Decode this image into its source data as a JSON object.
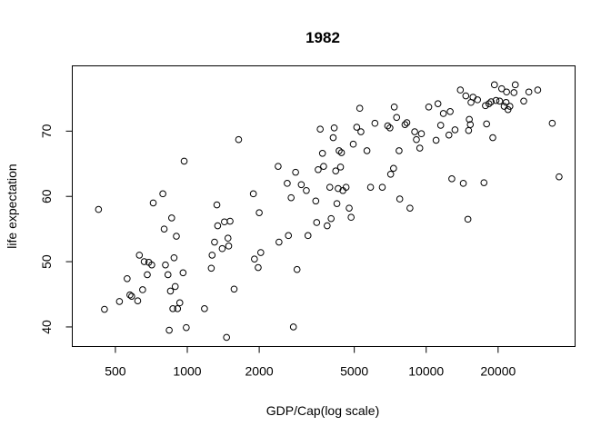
{
  "chart_data": {
    "type": "scatter",
    "title": "1982",
    "xlabel": "GDP/Cap(log scale)",
    "ylabel": "life expectation",
    "x_scale": "log",
    "xlim": [
      330,
      42000
    ],
    "ylim": [
      37,
      80
    ],
    "x_ticks": [
      500,
      1000,
      2000,
      5000,
      10000,
      20000
    ],
    "y_ticks": [
      40,
      50,
      60,
      70
    ],
    "grid": false,
    "legend": "none",
    "points": [
      {
        "x": 425,
        "y": 58.0
      },
      {
        "x": 450,
        "y": 42.7
      },
      {
        "x": 520,
        "y": 43.9
      },
      {
        "x": 560,
        "y": 47.4
      },
      {
        "x": 575,
        "y": 44.9
      },
      {
        "x": 585,
        "y": 44.7
      },
      {
        "x": 620,
        "y": 44.0
      },
      {
        "x": 630,
        "y": 51.0
      },
      {
        "x": 650,
        "y": 45.7
      },
      {
        "x": 660,
        "y": 50.0
      },
      {
        "x": 680,
        "y": 48.0
      },
      {
        "x": 690,
        "y": 49.9
      },
      {
        "x": 710,
        "y": 49.5
      },
      {
        "x": 720,
        "y": 59.0
      },
      {
        "x": 790,
        "y": 60.4
      },
      {
        "x": 800,
        "y": 55.0
      },
      {
        "x": 810,
        "y": 49.5
      },
      {
        "x": 830,
        "y": 48.0
      },
      {
        "x": 840,
        "y": 39.5
      },
      {
        "x": 850,
        "y": 45.5
      },
      {
        "x": 860,
        "y": 56.7
      },
      {
        "x": 870,
        "y": 42.8
      },
      {
        "x": 880,
        "y": 50.6
      },
      {
        "x": 890,
        "y": 46.2
      },
      {
        "x": 900,
        "y": 53.9
      },
      {
        "x": 910,
        "y": 42.8
      },
      {
        "x": 930,
        "y": 43.7
      },
      {
        "x": 960,
        "y": 48.3
      },
      {
        "x": 970,
        "y": 65.4
      },
      {
        "x": 990,
        "y": 39.9
      },
      {
        "x": 1180,
        "y": 42.8
      },
      {
        "x": 1260,
        "y": 49.0
      },
      {
        "x": 1270,
        "y": 51.0
      },
      {
        "x": 1300,
        "y": 53.0
      },
      {
        "x": 1330,
        "y": 58.7
      },
      {
        "x": 1340,
        "y": 55.5
      },
      {
        "x": 1400,
        "y": 52.0
      },
      {
        "x": 1430,
        "y": 56.1
      },
      {
        "x": 1460,
        "y": 38.4
      },
      {
        "x": 1480,
        "y": 53.6
      },
      {
        "x": 1490,
        "y": 52.4
      },
      {
        "x": 1510,
        "y": 56.2
      },
      {
        "x": 1570,
        "y": 45.8
      },
      {
        "x": 1640,
        "y": 68.7
      },
      {
        "x": 1890,
        "y": 60.4
      },
      {
        "x": 1910,
        "y": 50.4
      },
      {
        "x": 1980,
        "y": 49.1
      },
      {
        "x": 2000,
        "y": 57.5
      },
      {
        "x": 2030,
        "y": 51.4
      },
      {
        "x": 2400,
        "y": 64.6
      },
      {
        "x": 2420,
        "y": 53.0
      },
      {
        "x": 2620,
        "y": 62.0
      },
      {
        "x": 2650,
        "y": 54.0
      },
      {
        "x": 2720,
        "y": 59.8
      },
      {
        "x": 2780,
        "y": 40.0
      },
      {
        "x": 2840,
        "y": 63.7
      },
      {
        "x": 2880,
        "y": 48.8
      },
      {
        "x": 3000,
        "y": 61.8
      },
      {
        "x": 3150,
        "y": 60.9
      },
      {
        "x": 3200,
        "y": 54.0
      },
      {
        "x": 3450,
        "y": 59.3
      },
      {
        "x": 3480,
        "y": 56.0
      },
      {
        "x": 3530,
        "y": 64.1
      },
      {
        "x": 3600,
        "y": 70.3
      },
      {
        "x": 3680,
        "y": 66.6
      },
      {
        "x": 3720,
        "y": 64.6
      },
      {
        "x": 3850,
        "y": 55.5
      },
      {
        "x": 3950,
        "y": 61.4
      },
      {
        "x": 4000,
        "y": 56.6
      },
      {
        "x": 4080,
        "y": 69.0
      },
      {
        "x": 4120,
        "y": 70.5
      },
      {
        "x": 4180,
        "y": 63.9
      },
      {
        "x": 4230,
        "y": 58.9
      },
      {
        "x": 4280,
        "y": 61.2
      },
      {
        "x": 4320,
        "y": 67.0
      },
      {
        "x": 4380,
        "y": 64.5
      },
      {
        "x": 4420,
        "y": 66.7
      },
      {
        "x": 4480,
        "y": 60.9
      },
      {
        "x": 4620,
        "y": 61.4
      },
      {
        "x": 4760,
        "y": 58.2
      },
      {
        "x": 4850,
        "y": 56.8
      },
      {
        "x": 4950,
        "y": 68.0
      },
      {
        "x": 5120,
        "y": 70.6
      },
      {
        "x": 5270,
        "y": 73.5
      },
      {
        "x": 5330,
        "y": 69.9
      },
      {
        "x": 5650,
        "y": 67.0
      },
      {
        "x": 5850,
        "y": 61.4
      },
      {
        "x": 6100,
        "y": 71.2
      },
      {
        "x": 6550,
        "y": 61.4
      },
      {
        "x": 6900,
        "y": 70.8
      },
      {
        "x": 7050,
        "y": 70.5
      },
      {
        "x": 7100,
        "y": 63.4
      },
      {
        "x": 7300,
        "y": 64.3
      },
      {
        "x": 7350,
        "y": 73.7
      },
      {
        "x": 7520,
        "y": 72.1
      },
      {
        "x": 7700,
        "y": 67.0
      },
      {
        "x": 7750,
        "y": 59.6
      },
      {
        "x": 8150,
        "y": 71.0
      },
      {
        "x": 8300,
        "y": 71.3
      },
      {
        "x": 8550,
        "y": 58.2
      },
      {
        "x": 8950,
        "y": 69.9
      },
      {
        "x": 9100,
        "y": 68.7
      },
      {
        "x": 9400,
        "y": 67.4
      },
      {
        "x": 9550,
        "y": 69.6
      },
      {
        "x": 10250,
        "y": 73.7
      },
      {
        "x": 11000,
        "y": 68.6
      },
      {
        "x": 11200,
        "y": 74.2
      },
      {
        "x": 11500,
        "y": 70.9
      },
      {
        "x": 11800,
        "y": 72.7
      },
      {
        "x": 12450,
        "y": 69.4
      },
      {
        "x": 12600,
        "y": 73.0
      },
      {
        "x": 12800,
        "y": 62.7
      },
      {
        "x": 13200,
        "y": 70.2
      },
      {
        "x": 13900,
        "y": 76.3
      },
      {
        "x": 14300,
        "y": 62.0
      },
      {
        "x": 14650,
        "y": 75.4
      },
      {
        "x": 14950,
        "y": 56.5
      },
      {
        "x": 15050,
        "y": 70.1
      },
      {
        "x": 15150,
        "y": 71.8
      },
      {
        "x": 15300,
        "y": 71.0
      },
      {
        "x": 15400,
        "y": 74.4
      },
      {
        "x": 15700,
        "y": 75.2
      },
      {
        "x": 16400,
        "y": 74.8
      },
      {
        "x": 17450,
        "y": 62.1
      },
      {
        "x": 17700,
        "y": 73.9
      },
      {
        "x": 17900,
        "y": 71.1
      },
      {
        "x": 18300,
        "y": 74.2
      },
      {
        "x": 18700,
        "y": 74.5
      },
      {
        "x": 19000,
        "y": 69.0
      },
      {
        "x": 19300,
        "y": 77.1
      },
      {
        "x": 19600,
        "y": 74.7
      },
      {
        "x": 20300,
        "y": 74.6
      },
      {
        "x": 20700,
        "y": 76.5
      },
      {
        "x": 21200,
        "y": 73.8
      },
      {
        "x": 21600,
        "y": 74.4
      },
      {
        "x": 21700,
        "y": 76.0
      },
      {
        "x": 22000,
        "y": 73.3
      },
      {
        "x": 22400,
        "y": 73.8
      },
      {
        "x": 23300,
        "y": 75.9
      },
      {
        "x": 23600,
        "y": 77.1
      },
      {
        "x": 25600,
        "y": 74.6
      },
      {
        "x": 26900,
        "y": 76.0
      },
      {
        "x": 29300,
        "y": 76.3
      },
      {
        "x": 33700,
        "y": 71.2
      },
      {
        "x": 36000,
        "y": 63.0
      }
    ]
  }
}
